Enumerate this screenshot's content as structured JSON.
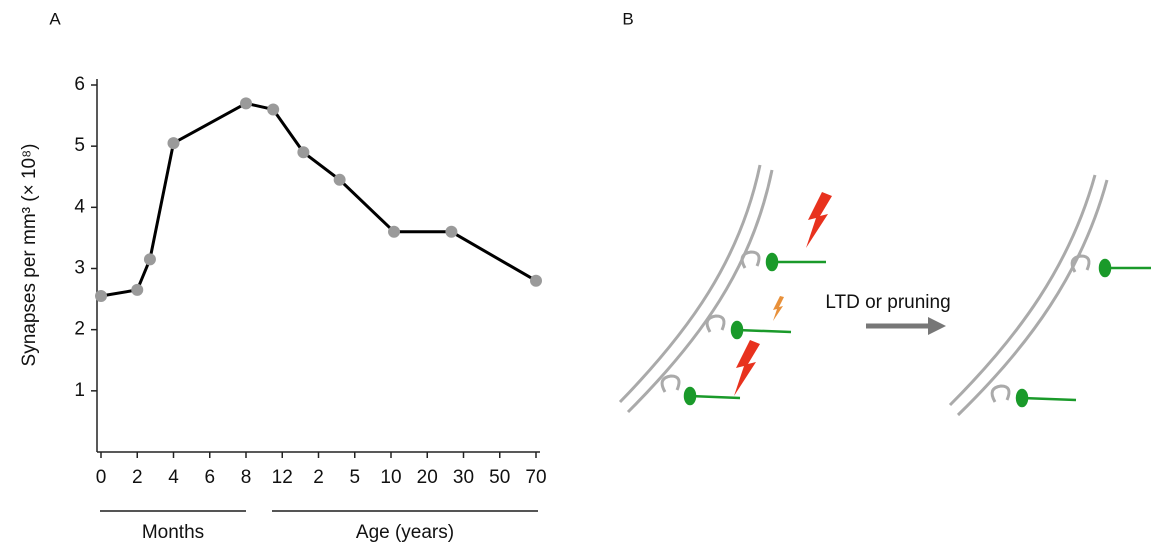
{
  "panels": {
    "a": "A",
    "b": "B"
  },
  "chart_data": {
    "type": "line",
    "y_label": "Synapses per mm³ (× 10⁸)",
    "x_group_labels": [
      "Months",
      "Age (years)"
    ],
    "x": [
      0,
      2,
      2.7,
      4,
      8,
      11,
      19,
      45,
      130,
      320,
      840
    ],
    "values": [
      2.55,
      2.65,
      3.15,
      5.05,
      5.7,
      5.6,
      4.9,
      4.45,
      3.6,
      3.6,
      2.8
    ],
    "color": "#000000",
    "marker_color": "#9a9a9a",
    "xlim": [
      0,
      840
    ],
    "xticks": [
      0,
      {
        "value": 2,
        "label": "2"
      },
      4,
      6,
      8,
      12,
      {
        "value": 24,
        "label": "2"
      },
      {
        "value": 60,
        "label": "5"
      },
      {
        "value": 120,
        "label": "10"
      },
      {
        "value": 240,
        "label": "20"
      },
      {
        "value": 360,
        "label": "30"
      },
      {
        "value": 600,
        "label": "50"
      },
      {
        "value": 840,
        "label": "70"
      }
    ],
    "ylim": [
      0,
      6
    ],
    "yticks": [
      1,
      2,
      3,
      4,
      5,
      6
    ],
    "grid": false
  },
  "diagram": {
    "arrow_label": "LTD or pruning"
  }
}
